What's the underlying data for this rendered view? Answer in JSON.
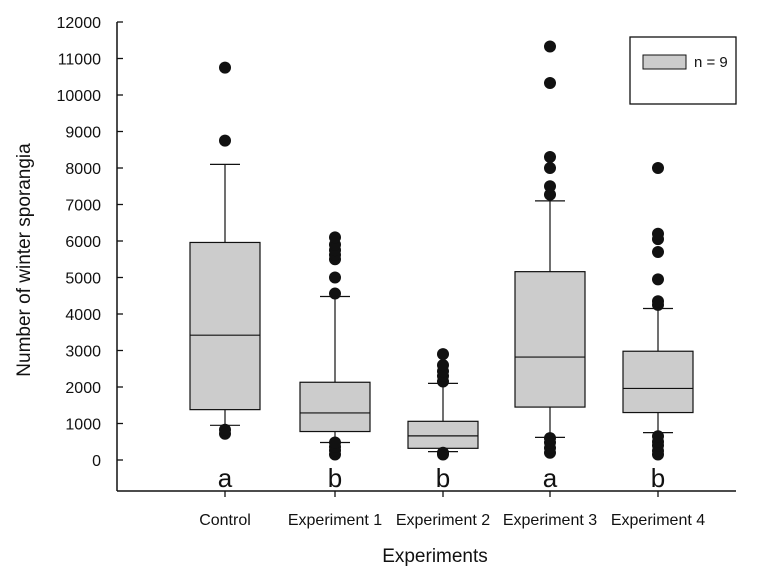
{
  "colors": {
    "box_fill": "#cccccc",
    "stroke": "#111111",
    "outlier": "#111111",
    "background": "#ffffff"
  },
  "chart_data": {
    "type": "box",
    "title": "",
    "xlabel": "Experiments",
    "ylabel": "Number of winter sporangia",
    "ylim": [
      0,
      12000
    ],
    "yticks": [
      0,
      1000,
      2000,
      3000,
      4000,
      5000,
      6000,
      7000,
      8000,
      9000,
      10000,
      11000,
      12000
    ],
    "grid": false,
    "legend": {
      "position": "top-right",
      "entries": [
        "n = 9"
      ]
    },
    "categories": [
      "Control",
      "Experiment 1",
      "Experiment 2",
      "Experiment 3",
      "Experiment 4"
    ],
    "boxes": [
      {
        "category": "Control",
        "whisker_low": 950,
        "q1": 1380,
        "median": 3420,
        "q3": 5960,
        "whisker_high": 8100,
        "outliers": [
          720,
          830,
          8750,
          10750
        ],
        "group_label": "a"
      },
      {
        "category": "Experiment 1",
        "whisker_low": 480,
        "q1": 780,
        "median": 1290,
        "q3": 2130,
        "whisker_high": 4480,
        "outliers": [
          150,
          260,
          360,
          480,
          4560,
          5000,
          5500,
          5620,
          5750,
          5900,
          6100
        ],
        "group_label": "b"
      },
      {
        "category": "Experiment 2",
        "whisker_low": 230,
        "q1": 320,
        "median": 660,
        "q3": 1060,
        "whisker_high": 2100,
        "outliers": [
          150,
          200,
          2150,
          2300,
          2430,
          2600,
          2900
        ],
        "group_label": "b"
      },
      {
        "category": "Experiment 3",
        "whisker_low": 620,
        "q1": 1450,
        "median": 2820,
        "q3": 5160,
        "whisker_high": 7100,
        "outliers": [
          200,
          330,
          480,
          600,
          7270,
          7500,
          8000,
          8300,
          10330,
          11330
        ],
        "group_label": "a"
      },
      {
        "category": "Experiment 4",
        "whisker_low": 750,
        "q1": 1300,
        "median": 1960,
        "q3": 2980,
        "whisker_high": 4150,
        "outliers": [
          150,
          250,
          400,
          500,
          650,
          4250,
          4350,
          4950,
          5700,
          6050,
          6200,
          8000
        ],
        "group_label": "b"
      }
    ]
  }
}
